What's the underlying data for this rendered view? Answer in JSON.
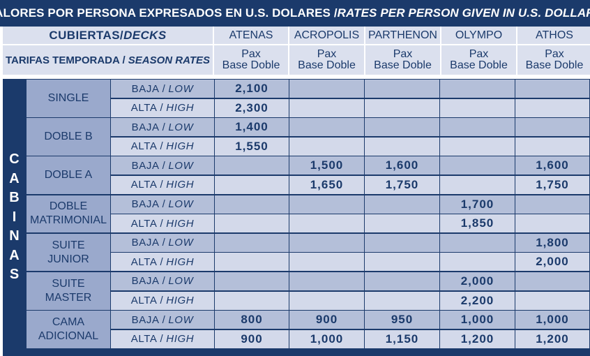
{
  "title": {
    "es": "(VALORES POR PERSONA EXPRESADOS EN U.S. DOLARES / ",
    "en": "RATES PER PERSON GIVEN IN U.S. DOLLARS)"
  },
  "header": {
    "decks_es": "CUBIERTAS/",
    "decks_en": "DECKS",
    "season_es": "TARIFAS TEMPORADA / ",
    "season_en": "SEASON RATES",
    "ships": [
      "ATENAS",
      "ACROPOLIS",
      "PARTHENON",
      "OLYMPO",
      "ATHOS"
    ],
    "pax_line1": "Pax",
    "pax_line2": "Base Doble"
  },
  "side_label": [
    "C",
    "A",
    "B",
    "I",
    "N",
    "A",
    "S"
  ],
  "seasons": {
    "low_es": "BAJA",
    "low_en": "LOW",
    "high_es": "ALTA",
    "high_en": "HIGH",
    "sep": "/"
  },
  "cabins": [
    {
      "name": "SINGLE",
      "low": [
        "2,100",
        "",
        "",
        "",
        ""
      ],
      "high": [
        "2,300",
        "",
        "",
        "",
        ""
      ]
    },
    {
      "name": "DOBLE B",
      "low": [
        "1,400",
        "",
        "",
        "",
        ""
      ],
      "high": [
        "1,550",
        "",
        "",
        "",
        ""
      ]
    },
    {
      "name": "DOBLE A",
      "low": [
        "",
        "1,500",
        "1,600",
        "",
        "1,600"
      ],
      "high": [
        "",
        "1,650",
        "1,750",
        "",
        "1,750"
      ]
    },
    {
      "name": "DOBLE\nMATRIMONIAL",
      "low": [
        "",
        "",
        "",
        "1,700",
        ""
      ],
      "high": [
        "",
        "",
        "",
        "1,850",
        ""
      ]
    },
    {
      "name": "SUITE\nJUNIOR",
      "low": [
        "",
        "",
        "",
        "",
        "1,800"
      ],
      "high": [
        "",
        "",
        "",
        "",
        "2,000"
      ]
    },
    {
      "name": "SUITE\nMASTER",
      "low": [
        "",
        "",
        "",
        "2,000",
        ""
      ],
      "high": [
        "",
        "",
        "",
        "2,200",
        ""
      ]
    },
    {
      "name": "CAMA\nADICIONAL",
      "low": [
        "800",
        "900",
        "950",
        "1,000",
        "1,000"
      ],
      "high": [
        "900",
        "1,000",
        "1,150",
        "1,200",
        "1,200"
      ]
    }
  ],
  "colors": {
    "navy": "#1b3a6b",
    "header_bg": "#dbe0ee",
    "cabin_bg": "#9aa9cc",
    "row_even": "#b4bfd9",
    "row_odd": "#d3d9ea"
  }
}
